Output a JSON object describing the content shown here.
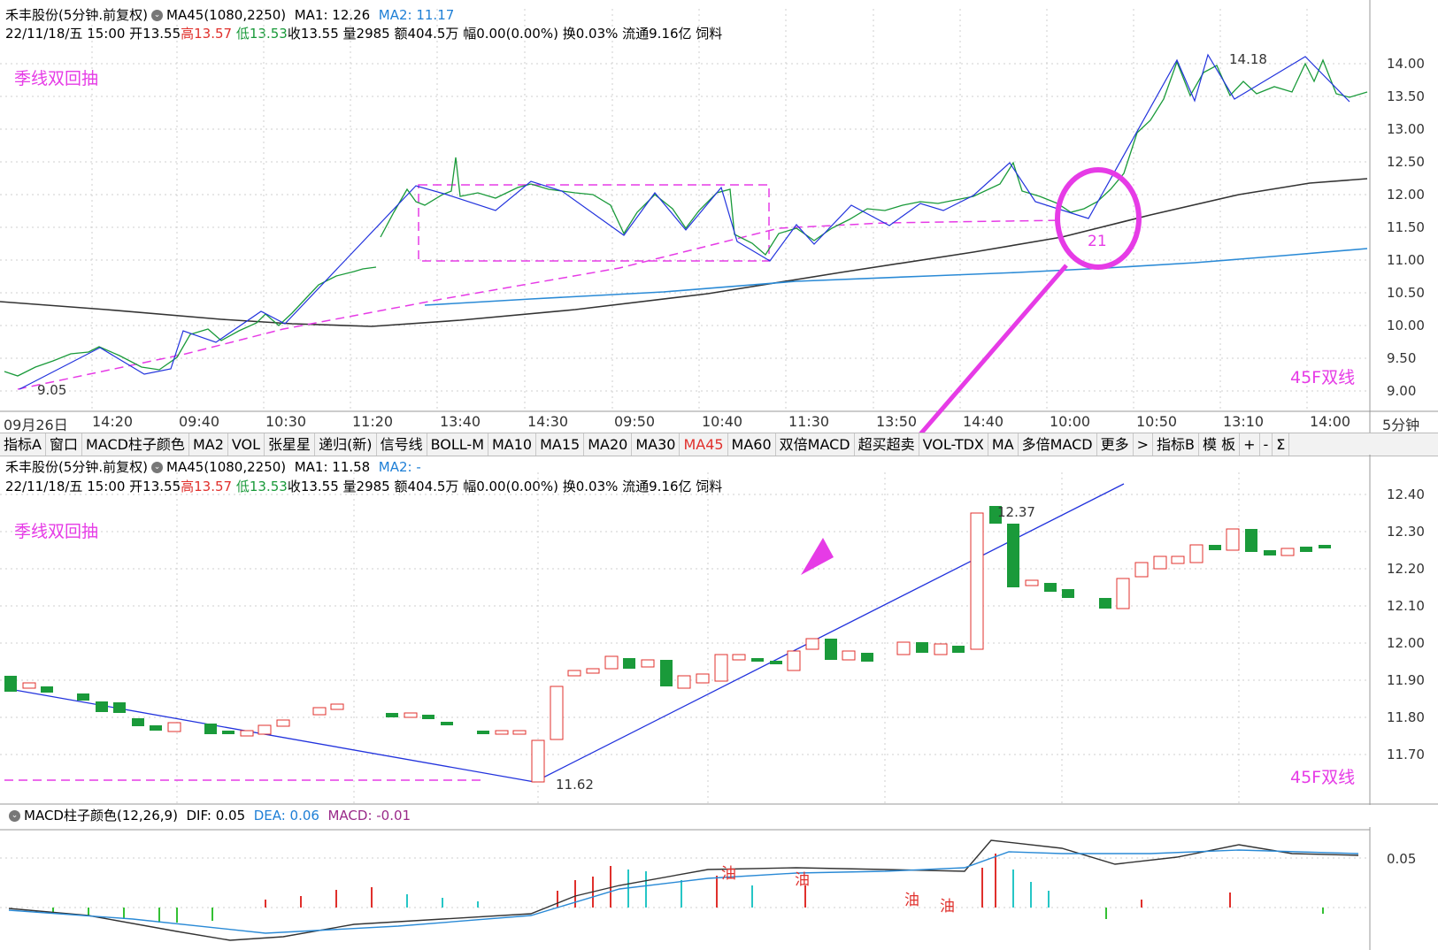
{
  "panel1": {
    "title_name": "禾丰股份(5分钟.前复权)",
    "ma45_label": "MA45(1080,2250)",
    "ma1_label": "MA1: 12.26",
    "ma2_label": "MA2: 11.17",
    "quote_prefix": "22/11/18/五 15:00 开13.55",
    "high_text": "高13.57",
    "low_text": "低13.53",
    "quote_suffix": "收13.55 量2985 额404.5万 幅0.00(0.00%) 换0.03% 流通9.16亿 饲料",
    "annotation_left": "季线双回抽",
    "annotation_right": "45F双线",
    "price_labels": [
      "14.00",
      "13.50",
      "13.00",
      "12.50",
      "12.00",
      "11.50",
      "11.00",
      "10.50",
      "10.00",
      "9.50",
      "9.00"
    ],
    "low_marker": "9.05",
    "high_marker": "14.18",
    "circle_label": "21",
    "time_labels": [
      "09月26日",
      "14:20",
      "09:40",
      "10:30",
      "11:20",
      "13:40",
      "14:30",
      "09:50",
      "10:40",
      "11:30",
      "13:50",
      "14:40",
      "10:00",
      "10:50",
      "13:10",
      "14:00"
    ],
    "period": "5分钟"
  },
  "toolbar": {
    "items": [
      "指标A",
      "窗口",
      "MACD柱子颜色",
      "MA2",
      "VOL",
      "张星星",
      "递归(新)",
      "信号线",
      "BOLL-M",
      "MA10",
      "MA15",
      "MA20",
      "MA30",
      "MA45",
      "MA60",
      "双倍MACD",
      "超买超卖",
      "VOL-TDX",
      "MA",
      "多倍MACD",
      "更多",
      ">",
      "指标B",
      "模 板",
      "+",
      "-",
      "Σ"
    ],
    "active": "MA45"
  },
  "panel2": {
    "title_name": "禾丰股份(5分钟.前复权)",
    "ma45_label": "MA45(1080,2250)",
    "ma1_label": "MA1: 11.58",
    "ma2_label": "MA2: -",
    "quote_prefix": "22/11/18/五 15:00 开13.55",
    "high_text": "高13.57",
    "low_text": "低13.53",
    "quote_suffix": "收13.55 量2985 额404.5万 幅0.00(0.00%) 换0.03% 流通9.16亿 饲料",
    "annotation_left": "季线双回抽",
    "annotation_right": "45F双线",
    "price_labels": [
      "12.40",
      "12.30",
      "12.20",
      "12.10",
      "12.00",
      "11.90",
      "11.80",
      "11.70"
    ],
    "low_marker": "11.62",
    "high_marker": "12.37"
  },
  "macd": {
    "label": "MACD柱子颜色(12,26,9)",
    "dif": "DIF: 0.05",
    "dea": "DEA: 0.06",
    "macd": "MACD: -0.01",
    "price_label": "0.05",
    "oil_marks": [
      "油",
      "油",
      "油",
      "油"
    ]
  },
  "colors": {
    "up": "#e0302c",
    "down": "#1a9a3a",
    "ma_dark": "#333333",
    "ma_blue": "#2a8ad6",
    "annotation": "#e63be6",
    "trend_line": "#2233dd"
  }
}
